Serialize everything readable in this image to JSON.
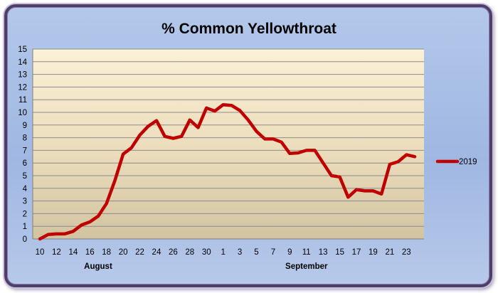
{
  "chart_data": {
    "type": "line",
    "title": "% Common Yellowthroat",
    "xlabel": "",
    "ylabel": "",
    "ylim": [
      0,
      15
    ],
    "y_ticks": [
      0,
      1,
      2,
      3,
      4,
      5,
      6,
      7,
      8,
      9,
      10,
      11,
      12,
      13,
      14,
      15
    ],
    "grid": true,
    "legend_position": "right",
    "x_tick_labels": [
      "10",
      "12",
      "14",
      "16",
      "18",
      "20",
      "22",
      "24",
      "26",
      "28",
      "30",
      "1",
      "3",
      "5",
      "7",
      "9",
      "11",
      "13",
      "15",
      "17",
      "19",
      "21",
      "23"
    ],
    "month_labels": [
      "August",
      "September"
    ],
    "x": [
      "Aug 10",
      "Aug 11",
      "Aug 12",
      "Aug 13",
      "Aug 14",
      "Aug 15",
      "Aug 16",
      "Aug 17",
      "Aug 18",
      "Aug 19",
      "Aug 20",
      "Aug 21",
      "Aug 22",
      "Aug 23",
      "Aug 24",
      "Aug 25",
      "Aug 26",
      "Aug 27",
      "Aug 28",
      "Aug 29",
      "Aug 30",
      "Aug 31",
      "Sep 1",
      "Sep 2",
      "Sep 3",
      "Sep 4",
      "Sep 5",
      "Sep 6",
      "Sep 7",
      "Sep 8",
      "Sep 9",
      "Sep 10",
      "Sep 11",
      "Sep 12",
      "Sep 13",
      "Sep 14",
      "Sep 15",
      "Sep 16",
      "Sep 17",
      "Sep 18",
      "Sep 19",
      "Sep 20",
      "Sep 21",
      "Sep 22",
      "Sep 23",
      "Sep 24"
    ],
    "series": [
      {
        "name": "2019",
        "color": "#c00000",
        "values": [
          0.0,
          0.35,
          0.4,
          0.4,
          0.6,
          1.1,
          1.35,
          1.8,
          2.8,
          4.6,
          6.7,
          7.2,
          8.2,
          8.9,
          9.35,
          8.1,
          7.95,
          8.1,
          9.4,
          8.8,
          10.35,
          10.1,
          10.6,
          10.55,
          10.15,
          9.4,
          8.5,
          7.9,
          7.9,
          7.65,
          6.75,
          6.8,
          7.0,
          7.0,
          6.0,
          5.0,
          4.9,
          3.3,
          3.9,
          3.8,
          3.8,
          3.55,
          5.9,
          6.1,
          6.65,
          6.5
        ]
      }
    ]
  }
}
